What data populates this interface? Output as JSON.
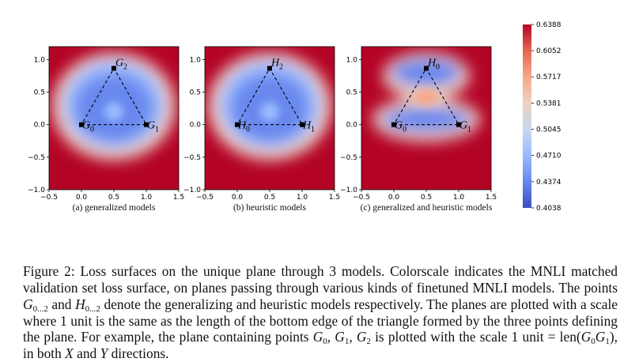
{
  "panels": [
    {
      "id": "a",
      "subcaption": "(a) generalized models",
      "points": [
        {
          "label": "G",
          "sub": "0",
          "x": 0.0,
          "y": 0.0
        },
        {
          "label": "G",
          "sub": "1",
          "x": 1.0,
          "y": 0.0
        },
        {
          "label": "G",
          "sub": "2",
          "x": 0.5,
          "y": 0.866
        }
      ]
    },
    {
      "id": "b",
      "subcaption": "(b) heuristic models",
      "points": [
        {
          "label": "H",
          "sub": "0",
          "x": 0.0,
          "y": 0.0
        },
        {
          "label": "H",
          "sub": "1",
          "x": 1.0,
          "y": 0.0
        },
        {
          "label": "H",
          "sub": "2",
          "x": 0.5,
          "y": 0.866
        }
      ]
    },
    {
      "id": "c",
      "subcaption": "(c) generalized and heuristic models",
      "points": [
        {
          "label": "G",
          "sub": "0",
          "x": 0.0,
          "y": 0.0
        },
        {
          "label": "G",
          "sub": "1",
          "x": 1.0,
          "y": 0.0
        },
        {
          "label": "H",
          "sub": "0",
          "x": 0.5,
          "y": 0.866
        }
      ]
    }
  ],
  "axes": {
    "x_ticks": [
      "−0.5",
      "0.0",
      "0.5",
      "1.0",
      "1.5"
    ],
    "x_tick_values": [
      -0.5,
      0.0,
      0.5,
      1.0,
      1.5
    ],
    "y_ticks": [
      "−1.0",
      "−0.5",
      "0.0",
      "0.5",
      "1.0"
    ],
    "y_tick_values": [
      -1.0,
      -0.5,
      0.0,
      0.5,
      1.0
    ],
    "xlim": [
      -0.5,
      1.5
    ],
    "ylim": [
      -1.0,
      1.2
    ]
  },
  "colorbar": {
    "tick_labels": [
      "0.6388",
      "0.6052",
      "0.5717",
      "0.5381",
      "0.5045",
      "0.4710",
      "0.4374",
      "0.4038"
    ],
    "tick_values": [
      0.6388,
      0.6052,
      0.5717,
      0.5381,
      0.5045,
      0.471,
      0.4374,
      0.4038
    ],
    "range": [
      0.4038,
      0.6388
    ],
    "colormap": [
      "#3b4cc0",
      "#6788ee",
      "#9abbff",
      "#c9d7f0",
      "#edd1c2",
      "#f7a889",
      "#e26952",
      "#b40426"
    ]
  },
  "chart_data": [
    {
      "type": "heatmap",
      "title": "",
      "xlabel": "",
      "ylabel": "",
      "xlim": [
        -0.5,
        1.5
      ],
      "ylim": [
        -1.0,
        1.2
      ],
      "points": [
        {
          "name": "G0",
          "x": 0.0,
          "y": 0.0
        },
        {
          "name": "G1",
          "x": 1.0,
          "y": 0.0
        },
        {
          "name": "G2",
          "x": 0.5,
          "y": 0.866
        }
      ]
    },
    {
      "type": "heatmap",
      "title": "",
      "xlabel": "",
      "ylabel": "",
      "xlim": [
        -0.5,
        1.5
      ],
      "ylim": [
        -1.0,
        1.2
      ],
      "points": [
        {
          "name": "H0",
          "x": 0.0,
          "y": 0.0
        },
        {
          "name": "H1",
          "x": 1.0,
          "y": 0.0
        },
        {
          "name": "H2",
          "x": 0.5,
          "y": 0.866
        }
      ]
    },
    {
      "type": "heatmap",
      "title": "",
      "xlabel": "",
      "ylabel": "",
      "xlim": [
        -0.5,
        1.5
      ],
      "ylim": [
        -1.0,
        1.2
      ],
      "points": [
        {
          "name": "G0",
          "x": 0.0,
          "y": 0.0
        },
        {
          "name": "G1",
          "x": 1.0,
          "y": 0.0
        },
        {
          "name": "H0",
          "x": 0.5,
          "y": 0.866
        }
      ]
    }
  ],
  "caption": {
    "intro": "Figure 2: Loss surfaces on the unique plane through 3 models. Colorscale indicates the MNLI matched validation set loss surface, on planes passing through various kinds of finetuned MNLI models. The points ",
    "g_range": "G",
    "g_sub": "0...2",
    "and": " and ",
    "h_range": "H",
    "h_sub": "0...2",
    "mid": " denote the generalizing and heuristic models respectively. The planes are plotted with a scale where 1 unit is the same as the length of the bottom edge of the triangle formed by the three points defining the plane. For example, the plane containing points ",
    "points_list": "G",
    "pl_sub0": "0",
    "pl_sep1": ", G",
    "pl_sub1": "1",
    "pl_sep2": ", G",
    "pl_sub2": "2",
    "scale_text": " is plotted with the scale 1 unit = len(",
    "len_g": "G",
    "len_sub0": "0",
    "len_g1": "G",
    "len_sub1": "1",
    "end_text": "), in both ",
    "x_var": "X",
    "and2": " and ",
    "y_var": "Y",
    "final": " directions."
  }
}
